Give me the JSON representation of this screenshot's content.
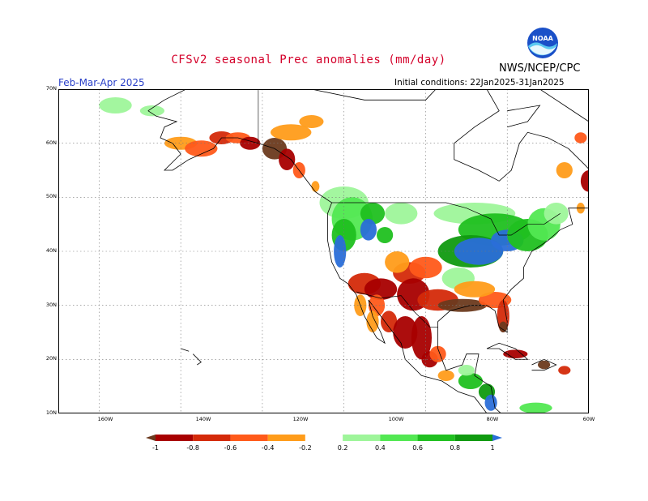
{
  "header": {
    "title": "CFSv2 seasonal Prec anomalies (mm/day)",
    "agency": "NWS/NCEP/CPC",
    "season": "Feb-Mar-Apr 2025",
    "initial_conditions": "Initial conditions: 22Jan2025-31Jan2025",
    "logo_text": "NOAA"
  },
  "map": {
    "lat_range": [
      10,
      70
    ],
    "lon_range": [
      -190,
      -60
    ],
    "lat_labels": [
      "70N",
      "60N",
      "50N",
      "40N",
      "30N",
      "20N",
      "10N"
    ],
    "lon_labels": [
      "160W",
      "140W",
      "120W",
      "100W",
      "80W",
      "60W"
    ],
    "ocean_color": "#ffffff"
  },
  "legend": {
    "labels": [
      "-1",
      "-0.8",
      "-0.6",
      "-0.4",
      "-0.2",
      "0.2",
      "0.4",
      "0.6",
      "0.8",
      "1"
    ],
    "colors": [
      "#6b3a1e",
      "#a80000",
      "#d42a0a",
      "#ff5a1a",
      "#ff9c1a",
      "#ffffff",
      "#9ef59a",
      "#52e852",
      "#20c020",
      "#109a10",
      "#2a6ed8"
    ]
  }
}
